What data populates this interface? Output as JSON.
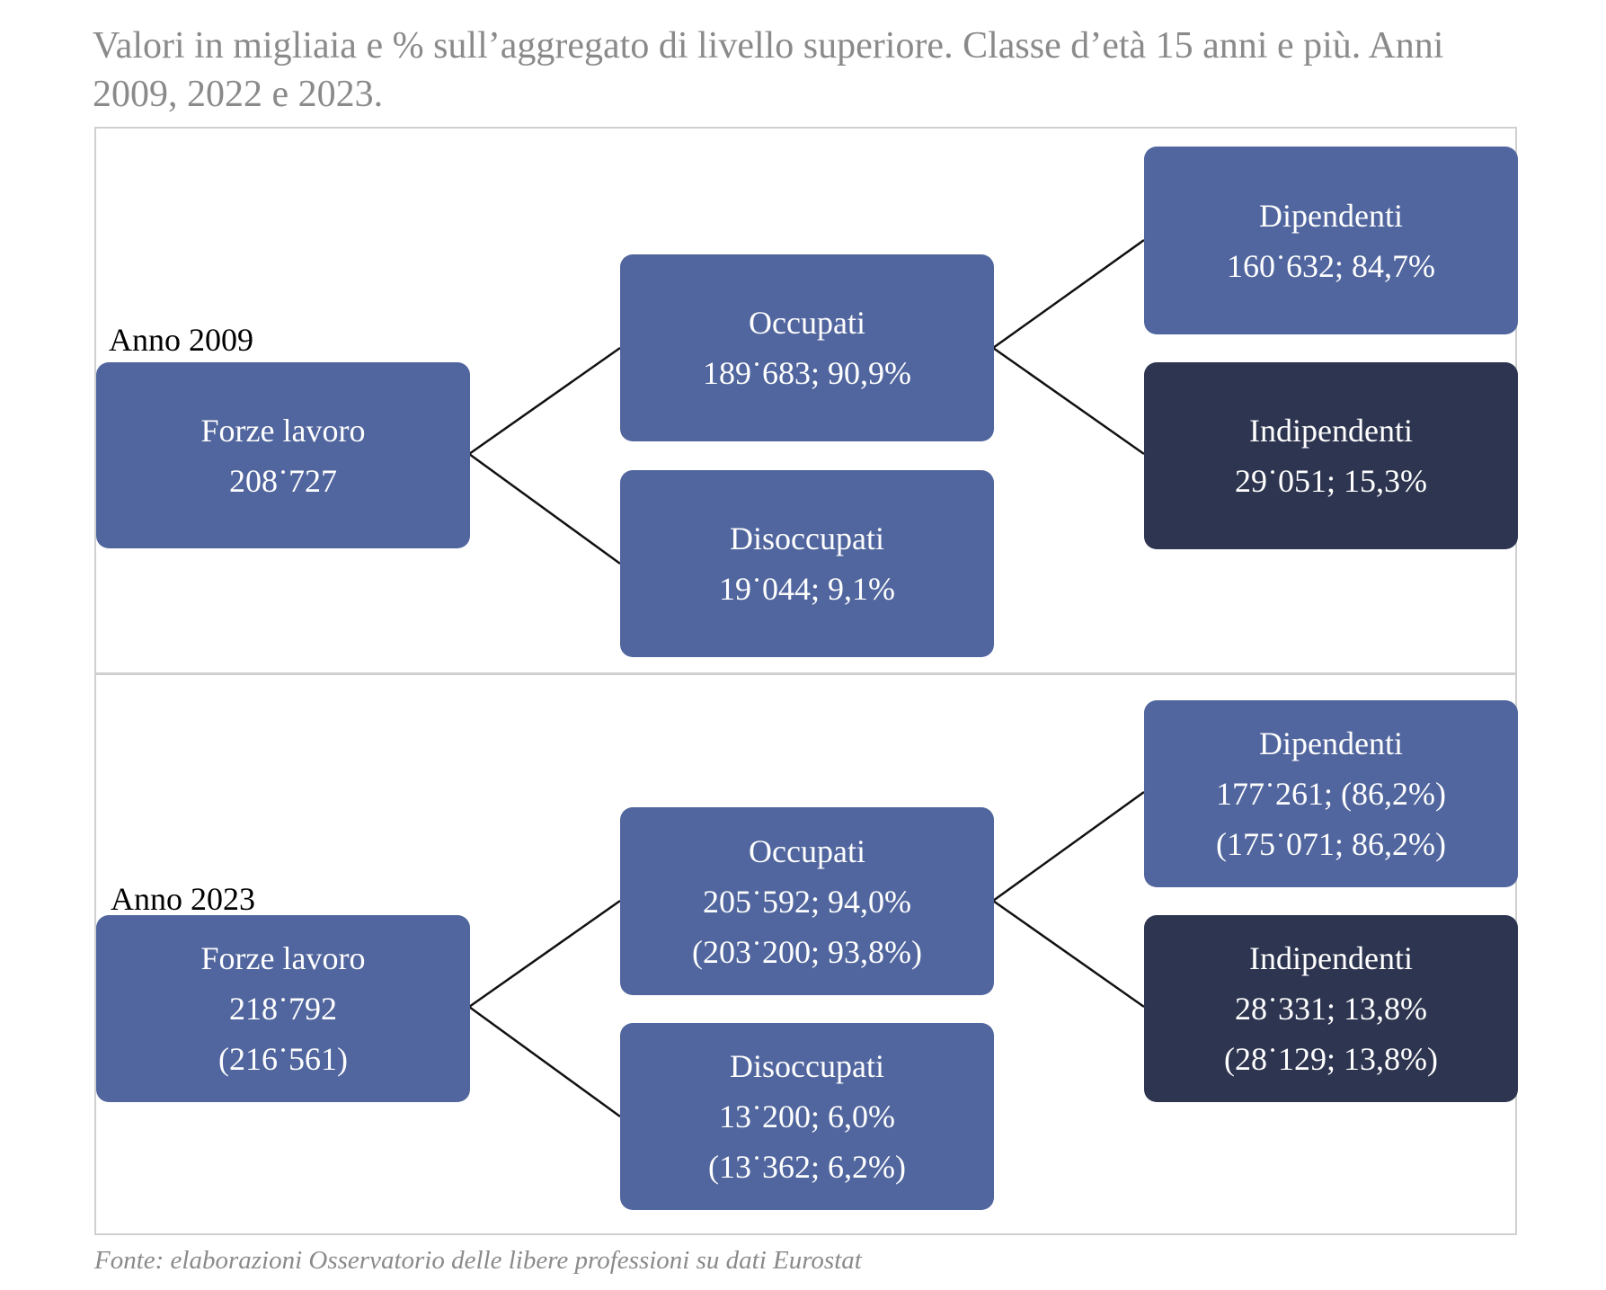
{
  "subtitle": "Valori in migliaia e % sull’aggregato di livello superiore. Classe d’età 15 anni e più. Anni 2009, 2022 e 2023.",
  "source": "Fonte: elaborazioni Osservatorio delle libere professioni su dati Eurostat",
  "panel_2009": {
    "year_label": "Anno 2009",
    "forze_lavoro": {
      "title": "Forze lavoro",
      "value": "208˙727"
    },
    "occupati": {
      "title": "Occupati",
      "value": "189˙683; 90,9%"
    },
    "disoccupati": {
      "title": "Disoccupati",
      "value": "19˙044; 9,1%"
    },
    "dipendenti": {
      "title": "Dipendenti",
      "value": "160˙632; 84,7%"
    },
    "indipendenti": {
      "title": "Indipendenti",
      "value": "29˙051; 15,3%"
    }
  },
  "panel_2023": {
    "year_label": "Anno 2023",
    "forze_lavoro": {
      "title": "Forze lavoro",
      "value": "218˙792",
      "value_2022": "(216˙561)"
    },
    "occupati": {
      "title": "Occupati",
      "value": "205˙592; 94,0%",
      "value_2022": "(203˙200; 93,8%)"
    },
    "disoccupati": {
      "title": "Disoccupati",
      "value": "13˙200; 6,0%",
      "value_2022": "(13˙362; 6,2%)"
    },
    "dipendenti": {
      "title": "Dipendenti",
      "value": "177˙261; (86,2%)",
      "value_2022": "(175˙071; 86,2%)"
    },
    "indipendenti": {
      "title": "Indipendenti",
      "value": "28˙331; 13,8%",
      "value_2022": "(28˙129; 13,8%)"
    }
  },
  "colors": {
    "box": "#51669e",
    "box_dark": "#2e3550",
    "text_muted": "#8a8a8a",
    "border": "#d0d0d0"
  }
}
